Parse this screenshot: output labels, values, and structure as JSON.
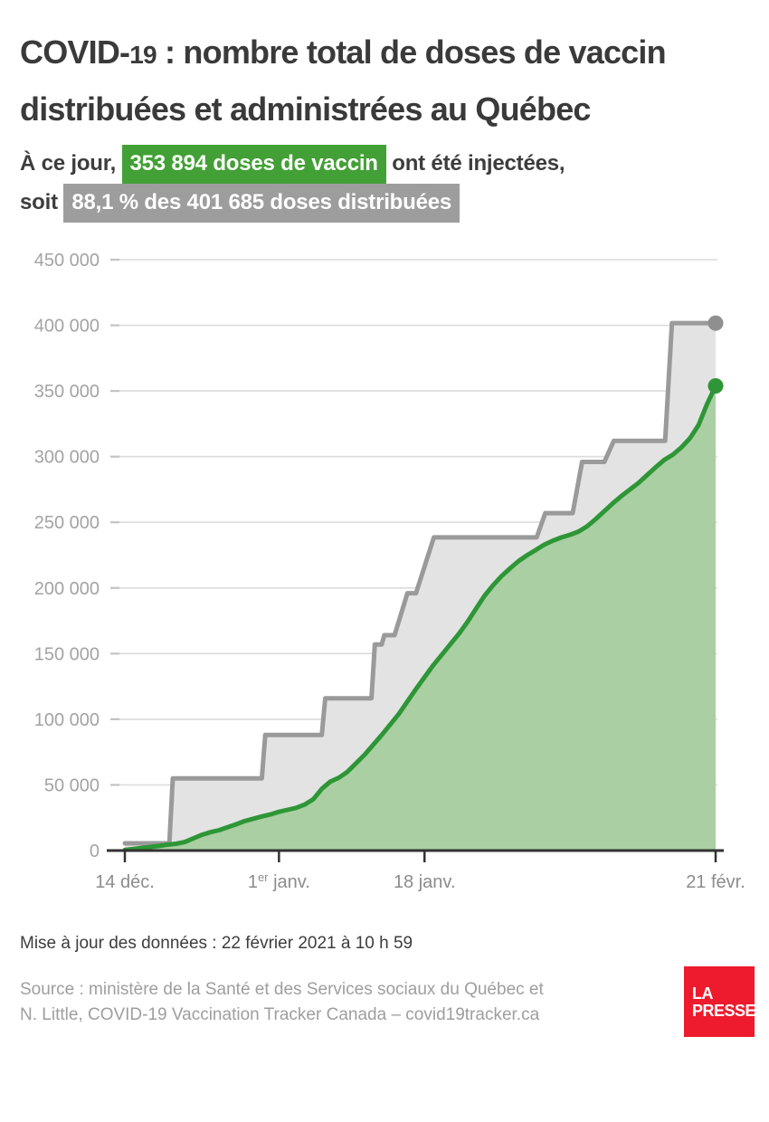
{
  "header": {
    "title_pre": "COVID-",
    "title_num": "19",
    "title_post": " : nombre total de doses de vaccin",
    "title_line2": "distribuées et administrées au Québec",
    "subtitle": {
      "lead": "À ce jour,",
      "highlight_green": "353 894 doses de vaccin",
      "after_green": "ont été injectées,",
      "line2_lead": "soit",
      "highlight_gray": "88,1 % des 401 685 doses distribuées"
    }
  },
  "chart_data": {
    "type": "area",
    "title": "Doses de vaccin distribuées et administrées au Québec",
    "grid": true,
    "legend_position": "none",
    "x_axis": {
      "unit": "jours depuis le 14 déc.",
      "range_days": [
        0,
        69
      ],
      "ticks": [
        {
          "day": 0,
          "pre": "14 déc.",
          "sup": "",
          "post": ""
        },
        {
          "day": 18,
          "pre": "1",
          "sup": "er",
          "post": " janv."
        },
        {
          "day": 35,
          "pre": "18 janv.",
          "sup": "",
          "post": ""
        },
        {
          "day": 69,
          "pre": "21 févr.",
          "sup": "",
          "post": ""
        }
      ]
    },
    "y_axis": {
      "min": 0,
      "max": 450000,
      "tick_values": [
        0,
        50000,
        100000,
        150000,
        200000,
        250000,
        300000,
        350000,
        400000,
        450000
      ],
      "tick_labels": [
        "0",
        "50 000",
        "100 000",
        "150 000",
        "200 000",
        "250 000",
        "300 000",
        "350 000",
        "400 000",
        "450 000"
      ]
    },
    "series": [
      {
        "name": "doses distribuées",
        "style": "step",
        "line_color": "#9a9a9a",
        "fill_color": "#e3e3e3",
        "dot_color": "#8f8f8f",
        "final_value": 401685,
        "points": [
          [
            0,
            5500
          ],
          [
            5.2,
            5500
          ],
          [
            5.6,
            55000
          ],
          [
            16,
            55000
          ],
          [
            16.4,
            88000
          ],
          [
            23,
            88000
          ],
          [
            23.4,
            116000
          ],
          [
            28.8,
            116000
          ],
          [
            29.2,
            157000
          ],
          [
            30,
            157000
          ],
          [
            30.3,
            164000
          ],
          [
            31.5,
            164000
          ],
          [
            33,
            196000
          ],
          [
            34,
            196000
          ],
          [
            36.1,
            238500
          ],
          [
            48.1,
            238500
          ],
          [
            49.1,
            257000
          ],
          [
            52.3,
            257000
          ],
          [
            53.4,
            296000
          ],
          [
            56,
            296000
          ],
          [
            57.1,
            312000
          ],
          [
            63.1,
            312000
          ],
          [
            63.9,
            401685
          ],
          [
            69,
            401685
          ]
        ]
      },
      {
        "name": "doses administrées",
        "style": "line",
        "line_color": "#2e9636",
        "fill_color": "rgba(139,196,129,0.66)",
        "dot_color": "#2e9636",
        "final_value": 353894,
        "points": [
          [
            0,
            500
          ],
          [
            2,
            2000
          ],
          [
            4,
            3500
          ],
          [
            5,
            4500
          ],
          [
            6,
            5200
          ],
          [
            7,
            6500
          ],
          [
            9,
            12000
          ],
          [
            10,
            14000
          ],
          [
            11,
            15500
          ],
          [
            13,
            20000
          ],
          [
            14,
            22500
          ],
          [
            16,
            26000
          ],
          [
            17,
            27500
          ],
          [
            18,
            29500
          ],
          [
            19,
            31000
          ],
          [
            20,
            32500
          ],
          [
            21,
            35000
          ],
          [
            22,
            39000
          ],
          [
            23,
            47000
          ],
          [
            24,
            52500
          ],
          [
            25,
            55500
          ],
          [
            26,
            60000
          ],
          [
            28,
            73000
          ],
          [
            30,
            88000
          ],
          [
            32,
            104000
          ],
          [
            34,
            123000
          ],
          [
            35,
            132000
          ],
          [
            36,
            141000
          ],
          [
            37,
            149000
          ],
          [
            38,
            157000
          ],
          [
            39,
            165000
          ],
          [
            40,
            174000
          ],
          [
            41,
            184000
          ],
          [
            42,
            194000
          ],
          [
            43,
            202000
          ],
          [
            44,
            209000
          ],
          [
            45,
            215000
          ],
          [
            46,
            220500
          ],
          [
            47,
            225000
          ],
          [
            48,
            229000
          ],
          [
            49,
            233000
          ],
          [
            50,
            236000
          ],
          [
            51,
            238500
          ],
          [
            52,
            240500
          ],
          [
            53,
            243000
          ],
          [
            54,
            247000
          ],
          [
            55,
            252500
          ],
          [
            56,
            258500
          ],
          [
            57,
            264500
          ],
          [
            58,
            270000
          ],
          [
            59,
            275000
          ],
          [
            60,
            280000
          ],
          [
            61,
            286000
          ],
          [
            62,
            292000
          ],
          [
            63,
            297500
          ],
          [
            64,
            301500
          ],
          [
            65,
            307000
          ],
          [
            66,
            314000
          ],
          [
            67,
            324000
          ],
          [
            68,
            340000
          ],
          [
            69,
            353894
          ]
        ]
      }
    ],
    "colors": {
      "grid": "#dcdcdc",
      "grid_stub": "#c3c3c3",
      "axis": "#323232",
      "y_label": "#a3a3a3",
      "x_label": "#8c8c8c"
    }
  },
  "footer": {
    "updated": "Mise à jour des données : 22 février 2021 à 10 h 59",
    "source_line1": "Source : ministère de la Santé et des Services sociaux du Québec et",
    "source_line2": "N. Little, COVID-19 Vaccination Tracker Canada – covid19tracker.ca",
    "logo_line1": "LA",
    "logo_line2": "PRESSE"
  }
}
